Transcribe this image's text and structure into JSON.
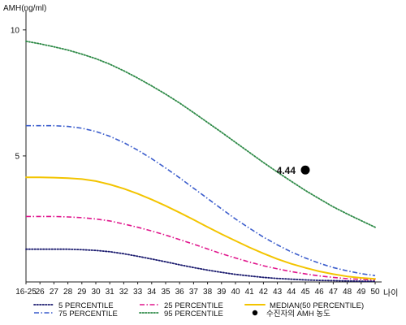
{
  "chart_data": {
    "type": "line",
    "ylabel": "AMH(ng/ml)",
    "xlabel": "나이",
    "ylim": [
      0,
      10.8
    ],
    "yticks": [
      5,
      10
    ],
    "categories": [
      "16-25",
      "26",
      "27",
      "28",
      "29",
      "30",
      "31",
      "32",
      "33",
      "34",
      "35",
      "36",
      "37",
      "38",
      "39",
      "40",
      "41",
      "42",
      "43",
      "44",
      "45",
      "46",
      "47",
      "48",
      "49",
      "50"
    ],
    "series": [
      {
        "name": "5 PERCENTILE",
        "color": "#1a1a6e",
        "style": "dotted",
        "values": [
          1.3,
          1.3,
          1.3,
          1.3,
          1.28,
          1.25,
          1.2,
          1.12,
          1.02,
          0.91,
          0.8,
          0.68,
          0.57,
          0.47,
          0.38,
          0.3,
          0.24,
          0.18,
          0.14,
          0.11,
          0.08,
          0.06,
          0.05,
          0.04,
          0.03,
          0.03
        ]
      },
      {
        "name": "25 PERCENTILE",
        "color": "#e0158c",
        "style": "dashdot",
        "values": [
          2.6,
          2.6,
          2.6,
          2.58,
          2.55,
          2.5,
          2.42,
          2.3,
          2.17,
          2.02,
          1.86,
          1.68,
          1.5,
          1.31,
          1.12,
          0.95,
          0.79,
          0.64,
          0.52,
          0.41,
          0.32,
          0.24,
          0.18,
          0.13,
          0.1,
          0.08
        ]
      },
      {
        "name": "MEDIAN(50 PERCENTILE)",
        "color": "#f3c400",
        "style": "solid",
        "values": [
          4.15,
          4.15,
          4.14,
          4.12,
          4.08,
          4.0,
          3.87,
          3.7,
          3.5,
          3.27,
          3.02,
          2.75,
          2.47,
          2.18,
          1.9,
          1.63,
          1.37,
          1.13,
          0.91,
          0.72,
          0.56,
          0.42,
          0.31,
          0.22,
          0.16,
          0.12
        ]
      },
      {
        "name": "75 PERCENTILE",
        "color": "#3a5ccc",
        "style": "dashdot",
        "values": [
          6.2,
          6.2,
          6.2,
          6.17,
          6.1,
          5.97,
          5.78,
          5.53,
          5.23,
          4.89,
          4.52,
          4.13,
          3.72,
          3.31,
          2.9,
          2.5,
          2.13,
          1.78,
          1.47,
          1.19,
          0.95,
          0.74,
          0.57,
          0.44,
          0.33,
          0.25
        ]
      },
      {
        "name": "95 PERCENTILE",
        "color": "#2e8a47",
        "style": "dotted",
        "values": [
          9.55,
          9.45,
          9.33,
          9.2,
          9.04,
          8.86,
          8.64,
          8.38,
          8.09,
          7.78,
          7.45,
          7.1,
          6.72,
          6.33,
          5.94,
          5.54,
          5.14,
          4.74,
          4.36,
          3.99,
          3.63,
          3.3,
          2.98,
          2.7,
          2.43,
          2.17
        ]
      }
    ],
    "point": {
      "label": "수진자의 AMH 농도",
      "x": "45",
      "value": 4.44,
      "value_label": "4.44",
      "color": "#000000"
    },
    "legend_position": "bottom",
    "grid": false
  }
}
